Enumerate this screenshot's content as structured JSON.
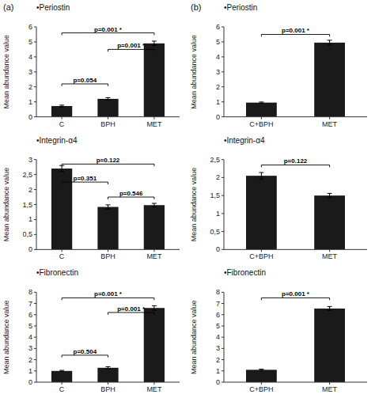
{
  "chart_data": [
    {
      "type": "bar",
      "title": "•Periostin",
      "y_label": "Mean abundance value",
      "categories": [
        "C",
        "BPH",
        "MET"
      ],
      "values": [
        0.72,
        1.2,
        4.9
      ],
      "errors": [
        0.06,
        0.08,
        0.15
      ],
      "color": "#1a1a1a",
      "ylim": [
        0,
        6
      ],
      "yticks": [
        0,
        1,
        2,
        3,
        4,
        5,
        6
      ],
      "grid": false,
      "annotations": [
        {
          "text": "(a)"
        },
        {
          "text": "p=0.054",
          "from": "C",
          "to": "BPH",
          "y": 2.2
        },
        {
          "text": "p=0.001 *",
          "from": "C",
          "to": "MET",
          "y": 5.6
        },
        {
          "text": "p=0.001 *",
          "from": "BPH",
          "to": "MET",
          "y": 4.5
        }
      ]
    },
    {
      "type": "bar",
      "title": "•Integrin-α4",
      "y_label": "Mean abundance value",
      "categories": [
        "C",
        "BPH",
        "MET"
      ],
      "values": [
        2.7,
        1.42,
        1.48
      ],
      "errors": [
        0.1,
        0.07,
        0.06
      ],
      "color": "#1a1a1a",
      "ylim": [
        0,
        3
      ],
      "yticks": [
        0,
        {
          "value": 0.5,
          "label": "0,5"
        },
        1,
        {
          "value": 1.5,
          "label": "1,5"
        },
        2,
        {
          "value": 2.5,
          "label": "2,5"
        },
        3
      ],
      "grid": false,
      "annotations": [
        {
          "text": "p=0.351",
          "from": "C",
          "to": "BPH",
          "y": 2.25
        },
        {
          "text": "p=0.546",
          "from": "BPH",
          "to": "MET",
          "y": 1.75
        },
        {
          "text": "p=0.122",
          "from": "C",
          "to": "MET",
          "y": 2.85
        }
      ]
    },
    {
      "type": "bar",
      "title": "•Fibronectin",
      "y_label": "Mean abundance value",
      "categories": [
        "C",
        "BPH",
        "MET"
      ],
      "values": [
        1.0,
        1.28,
        6.6
      ],
      "errors": [
        0.05,
        0.1,
        0.2
      ],
      "color": "#1a1a1a",
      "ylim": [
        0,
        8
      ],
      "yticks": [
        0,
        1,
        2,
        3,
        4,
        5,
        6,
        7,
        8
      ],
      "grid": false,
      "annotations": [
        {
          "text": "p=0.504",
          "from": "C",
          "to": "BPH",
          "y": 2.4
        },
        {
          "text": "p=0.001 *",
          "from": "C",
          "to": "MET",
          "y": 7.5
        },
        {
          "text": "p=0.001 *",
          "from": "BPH",
          "to": "MET",
          "y": 6.2
        }
      ]
    },
    {
      "type": "bar",
      "title": "•Periostin",
      "y_label": "Mean abundance value",
      "categories": [
        "C+BPH",
        "MET"
      ],
      "values": [
        0.95,
        4.95
      ],
      "errors": [
        0.04,
        0.16
      ],
      "color": "#1a1a1a",
      "ylim": [
        0,
        6
      ],
      "yticks": [
        0,
        1,
        2,
        3,
        4,
        5,
        6
      ],
      "grid": false,
      "annotations": [
        {
          "text": "(b)"
        },
        {
          "text": "p=0.001 *",
          "from": "C+BPH",
          "to": "MET",
          "y": 5.5
        }
      ]
    },
    {
      "type": "bar",
      "title": "•Integrin-α4",
      "y_label": "Mean abundance value",
      "categories": [
        "C+BPH",
        "MET"
      ],
      "values": [
        2.05,
        1.5
      ],
      "errors": [
        0.09,
        0.06
      ],
      "color": "#1a1a1a",
      "ylim": [
        0,
        2.5
      ],
      "yticks": [
        0,
        {
          "value": 0.5,
          "label": "0,5"
        },
        1,
        {
          "value": 1.5,
          "label": "1,5"
        },
        2,
        {
          "value": 2.5,
          "label": "2,5"
        }
      ],
      "grid": false,
      "annotations": [
        {
          "text": "p=0.122",
          "from": "C+BPH",
          "to": "MET",
          "y": 2.35
        }
      ]
    },
    {
      "type": "bar",
      "title": "•Fibronectin",
      "y_label": "Mean abundance value",
      "categories": [
        "C+BPH",
        "MET"
      ],
      "values": [
        1.1,
        6.55
      ],
      "errors": [
        0.06,
        0.18
      ],
      "color": "#1a1a1a",
      "ylim": [
        0,
        8
      ],
      "yticks": [
        0,
        1,
        2,
        3,
        4,
        5,
        6,
        7,
        8
      ],
      "grid": false,
      "annotations": [
        {
          "text": "p=0.001 *",
          "from": "C+BPH",
          "to": "MET",
          "y": 7.5
        }
      ]
    }
  ]
}
